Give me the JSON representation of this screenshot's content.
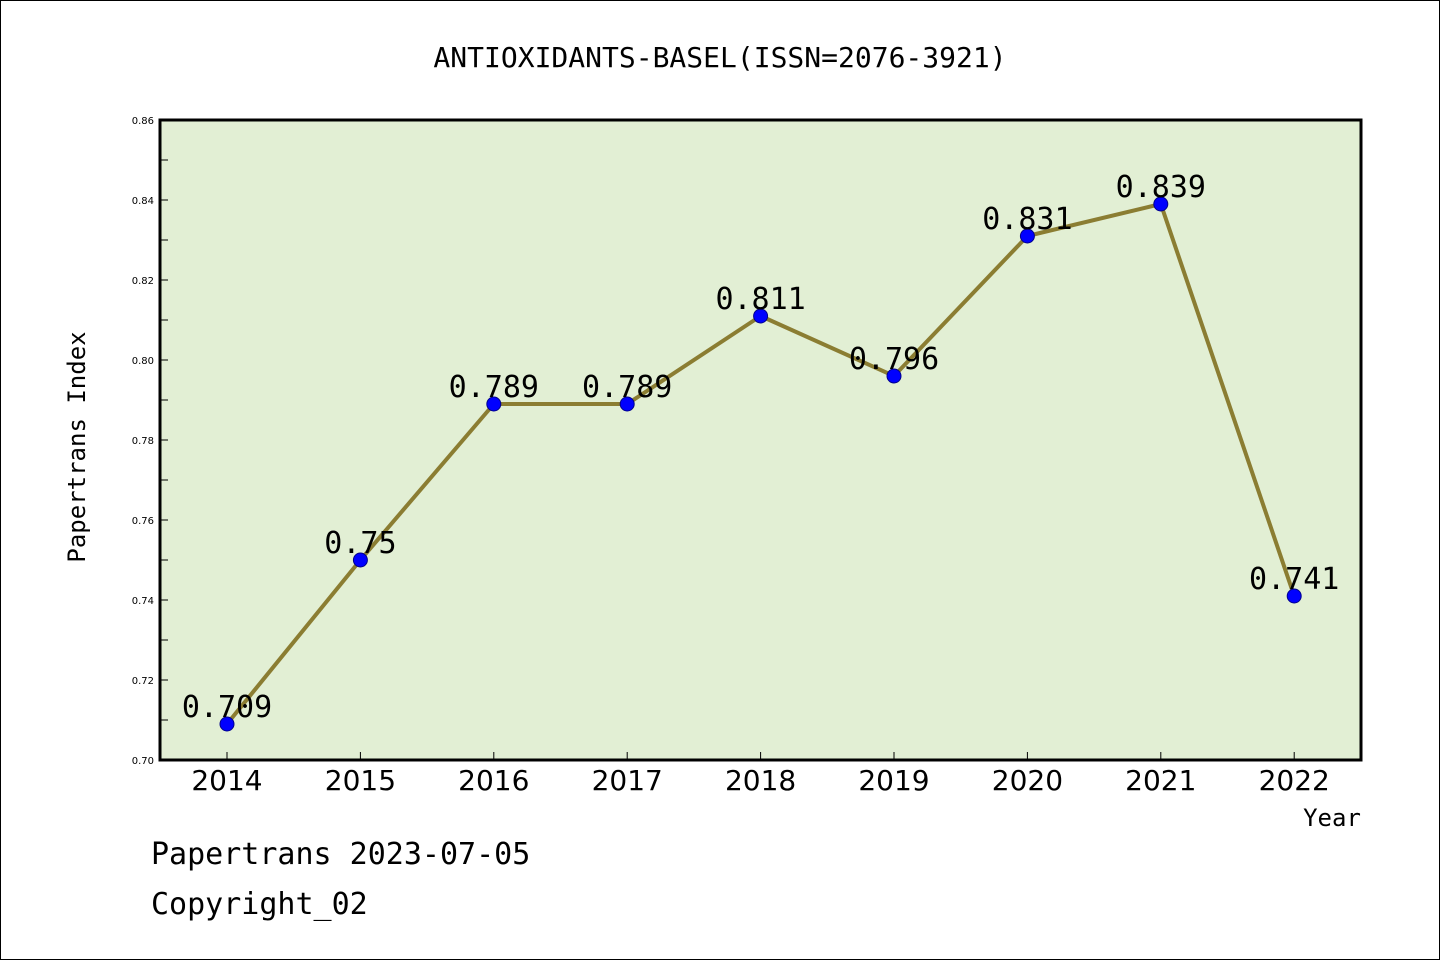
{
  "chart_data": {
    "type": "line",
    "title": "ANTIOXIDANTS-BASEL(ISSN=2076-3921)",
    "xlabel": "Year",
    "ylabel": "Papertrans Index",
    "categories": [
      "2014",
      "2015",
      "2016",
      "2017",
      "2018",
      "2019",
      "2020",
      "2021",
      "2022"
    ],
    "values": [
      0.709,
      0.75,
      0.789,
      0.789,
      0.811,
      0.796,
      0.831,
      0.839,
      0.741
    ],
    "data_labels": [
      "0.709",
      "0.75",
      "0.789",
      "0.789",
      "0.811",
      "0.796",
      "0.831",
      "0.839",
      "0.741"
    ],
    "ylim": [
      0.7,
      0.86
    ],
    "yticks": [
      "0.70",
      "0.72",
      "0.74",
      "0.76",
      "0.78",
      "0.80",
      "0.82",
      "0.84",
      "0.86"
    ],
    "grid": false,
    "colors": {
      "plot_background": "#e2efd4",
      "line": "#8b7d32",
      "marker": "#0000ff"
    }
  },
  "footer": {
    "line1": "Papertrans 2023-07-05",
    "line2": "Copyright_02"
  }
}
